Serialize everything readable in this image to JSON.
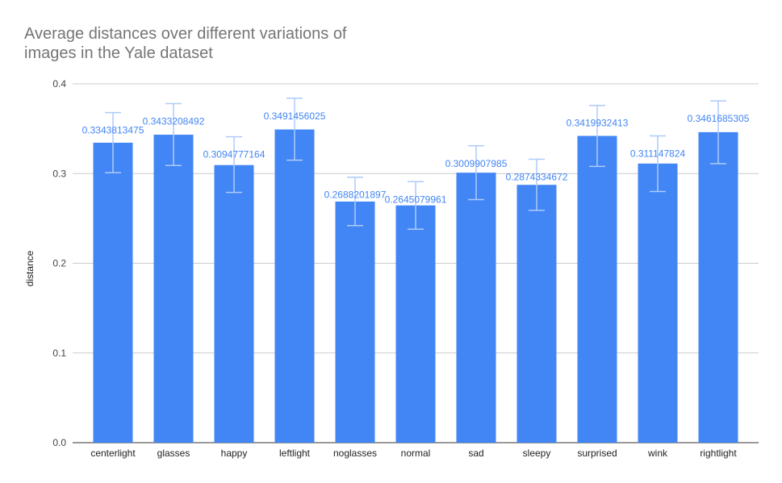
{
  "chart_data": {
    "type": "bar",
    "title": "Average distances over different variations of\nimages in the Yale dataset",
    "xlabel": "",
    "ylabel": "distance",
    "ylim": [
      0,
      0.4
    ],
    "yticks": [
      "0.0",
      "0.1",
      "0.2",
      "0.3",
      "0.4"
    ],
    "grid": true,
    "legend": "none",
    "bar_color": "#4285f4",
    "error_bar_color": "#aecbfa",
    "categories": [
      "centerlight",
      "glasses",
      "happy",
      "leftlight",
      "noglasses",
      "normal",
      "sad",
      "sleepy",
      "surprised",
      "wink",
      "rightlight"
    ],
    "values": [
      0.3343813475,
      0.3433208492,
      0.3094777164,
      0.3491456025,
      0.2688201897,
      0.2645079961,
      0.3009907985,
      0.2874334672,
      0.3419932413,
      0.311147824,
      0.3461685305
    ],
    "data_labels": [
      "0.3343813475",
      "0.3433208492",
      "0.3094777164",
      "0.3491456025",
      "0.2688201897",
      "0.2645079961",
      "0.3009907985",
      "0.2874334672",
      "0.3419932413",
      "0.311147824",
      "0.3461685305"
    ],
    "error_low": [
      0.301,
      0.309,
      0.279,
      0.315,
      0.242,
      0.238,
      0.271,
      0.259,
      0.308,
      0.28,
      0.311
    ],
    "error_high": [
      0.368,
      0.378,
      0.341,
      0.384,
      0.296,
      0.291,
      0.331,
      0.316,
      0.376,
      0.342,
      0.381
    ]
  }
}
